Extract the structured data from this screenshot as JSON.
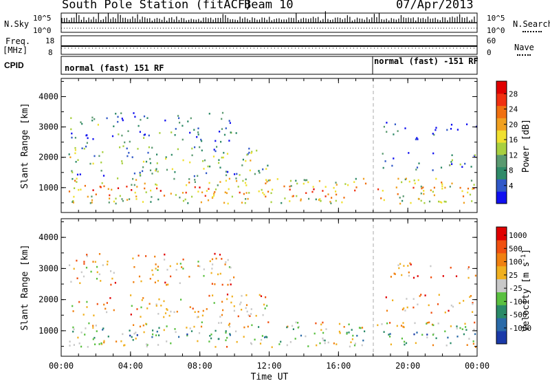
{
  "header": {
    "station": "South Pole Station (fitACF)",
    "beam": "Beam 10",
    "date": "07/Apr/2013"
  },
  "top_panel": {
    "nsky_label": "N.Sky",
    "nsky_ticks": [
      "10^5",
      "10^0"
    ],
    "nsearch_label": "N.Search",
    "nsearch_ticks": [
      "10^5",
      "10^0"
    ],
    "freq_label_1": "Freq.",
    "freq_label_2": "[MHz]",
    "freq_ticks": [
      "18",
      "8"
    ],
    "nave_label": "Nave",
    "nave_ticks": [
      "60",
      "0"
    ],
    "cpid_label": "CPID",
    "cpid_segments": [
      {
        "text": "normal (fast) 151 RF",
        "start_hour": 0
      },
      {
        "text": "normal (fast) -151 RF",
        "start_hour": 18
      }
    ]
  },
  "chart_data": [
    {
      "type": "heatmap",
      "title": "",
      "xlabel": "",
      "ylabel": "Slant Range [km]",
      "xlim": [
        0,
        24
      ],
      "ylim": [
        180,
        4600
      ],
      "yticks": [
        "1000",
        "2000",
        "3000",
        "4000"
      ],
      "colorbar": {
        "label": "Power [dB]",
        "ticks": [
          "4",
          "8",
          "12",
          "16",
          "20",
          "24",
          "28"
        ],
        "colors": [
          "#1010f0",
          "#3058c8",
          "#2f8a68",
          "#5a9a70",
          "#a8d040",
          "#f0e030",
          "#f0a020",
          "#f07010",
          "#f03010",
          "#e00000"
        ]
      },
      "bands": [
        {
          "t0": 0.4,
          "t1": 17.6,
          "r0": 500,
          "r1": 1350,
          "level": 0.75
        },
        {
          "t0": 18.2,
          "t1": 24.0,
          "r0": 500,
          "r1": 1350,
          "level": 0.7
        },
        {
          "t0": 0.4,
          "t1": 12.0,
          "r0": 1400,
          "r1": 2400,
          "level": 0.45
        },
        {
          "t0": 0.4,
          "t1": 10.2,
          "r0": 2500,
          "r1": 3500,
          "level": 0.3
        },
        {
          "t0": 18.5,
          "t1": 24.0,
          "r0": 1600,
          "r1": 2200,
          "level": 0.25
        },
        {
          "t0": 18.5,
          "t1": 24.0,
          "r0": 2600,
          "r1": 3200,
          "level": 0.15
        }
      ]
    },
    {
      "type": "heatmap",
      "title": "",
      "xlabel": "Time UT",
      "ylabel": "Slant Range [km]",
      "xlim": [
        0,
        24
      ],
      "ylim": [
        180,
        4600
      ],
      "xticks": [
        "00:00",
        "04:00",
        "08:00",
        "12:00",
        "16:00",
        "20:00",
        "00:00"
      ],
      "yticks": [
        "1000",
        "2000",
        "3000",
        "4000"
      ],
      "colorbar": {
        "label": "Velocity [m s^-1]",
        "ticks": [
          "1000",
          "500",
          "100",
          "25",
          "-25",
          "-100",
          "-500",
          "-1000"
        ],
        "colors": [
          "#1a3aa8",
          "#2a6aa8",
          "#2a8a68",
          "#5ac040",
          "#c8c8c8",
          "#f0b020",
          "#f08010",
          "#f05010",
          "#e00000"
        ]
      },
      "bands": [
        {
          "t0": 0.4,
          "t1": 17.6,
          "r0": 500,
          "r1": 1300,
          "level": 0.7
        },
        {
          "t0": 18.2,
          "t1": 24.0,
          "r0": 500,
          "r1": 1300,
          "level": 0.7
        },
        {
          "t0": 0.4,
          "t1": 12.0,
          "r0": 1450,
          "r1": 2200,
          "level": 0.45
        },
        {
          "t0": 0.4,
          "t1": 10.0,
          "r0": 2500,
          "r1": 3500,
          "level": 0.45
        },
        {
          "t0": 18.5,
          "t1": 24.0,
          "r0": 1600,
          "r1": 2200,
          "level": 0.4
        },
        {
          "t0": 18.5,
          "t1": 24.0,
          "r0": 2700,
          "r1": 3200,
          "level": 0.4
        }
      ]
    }
  ]
}
